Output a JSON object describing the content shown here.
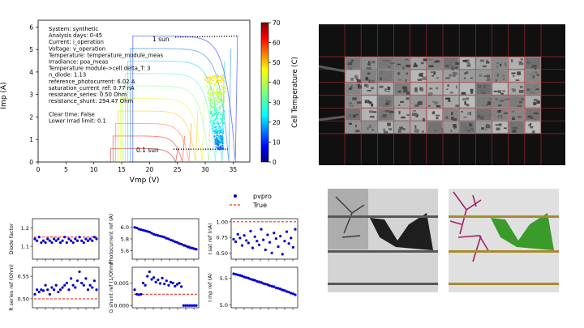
{
  "iv_plot": {
    "ylabel": "Imp (A)",
    "xlabel": "Vmp (V)",
    "xticks": [
      "0",
      "5",
      "10",
      "15",
      "20",
      "25",
      "30",
      "35"
    ],
    "yticks": [
      "0",
      "1",
      "2",
      "3",
      "4",
      "5",
      "6"
    ],
    "info_lines": [
      "System: synthetic",
      "Analysis days: 0-45",
      "Current: i_operation",
      "Voltage: v_operation",
      "Temperature: temperature_module_meas",
      "Irradiance: poa_meas",
      "Temperature module->cell delta_T: 3",
      "n_diode: 1.13",
      "reference_photocurrent: 6.02 A",
      "saturation_current_ref: 0.77 nA",
      "resistance_series: 0.50 Ohm",
      "resistance_shunt: 294.47 Ohm",
      "",
      "Clear time: False",
      "Lower Irrad limit: 0.1"
    ],
    "label_1sun": "1 sun",
    "label_01sun": "0.1 sun",
    "colorbar_label": "Cell Temperature (C)",
    "colorbar_ticks": [
      "0",
      "10",
      "20",
      "30",
      "40",
      "50",
      "60",
      "70"
    ]
  },
  "chart_data": [
    {
      "type": "line",
      "title": "",
      "xlabel": "Vmp (V)",
      "ylabel": "Imp (A)",
      "xlim": [
        0,
        38
      ],
      "ylim": [
        0,
        6.3
      ],
      "series": [
        {
          "name": "1 sun",
          "x": [
            24.6,
            36.0
          ],
          "y": [
            5.55,
            5.6
          ]
        },
        {
          "name": "0.1 sun",
          "x": [
            24.3,
            34.3
          ],
          "y": [
            0.57,
            0.57
          ]
        }
      ],
      "scatter_points": {
        "x_range": [
          30.5,
          35.5
        ],
        "y_range": [
          0.5,
          3.8
        ],
        "color_by": "Cell Temperature (C)",
        "clim": [
          0,
          70
        ]
      },
      "colorbar": {
        "label": "Cell Temperature (C)",
        "range": [
          0,
          70
        ]
      }
    },
    {
      "type": "scatter",
      "ylabel": "Diode factor",
      "yticks": [
        "1.1",
        "1.2"
      ],
      "ylim": [
        1.03,
        1.25
      ],
      "true_value": 1.15,
      "values": [
        1.14,
        1.13,
        1.15,
        1.12,
        1.13,
        1.12,
        1.14,
        1.13,
        1.12,
        1.14,
        1.13,
        1.14,
        1.12,
        1.13,
        1.15,
        1.12,
        1.14,
        1.13,
        1.12,
        1.14,
        1.13,
        1.15,
        1.13,
        1.12,
        1.14,
        1.13,
        1.14,
        1.13,
        1.15,
        1.14
      ]
    },
    {
      "type": "scatter",
      "ylabel": "Photocurrent ref (A)",
      "yticks": [
        "5.6",
        "5.8",
        "6.0"
      ],
      "ylim": [
        5.45,
        6.15
      ],
      "true_line": [
        6.0,
        5.63
      ],
      "values": [
        6.0,
        5.99,
        5.97,
        5.96,
        5.95,
        5.94,
        5.93,
        5.92,
        5.9,
        5.88,
        5.87,
        5.86,
        5.85,
        5.84,
        5.83,
        5.81,
        5.8,
        5.78,
        5.77,
        5.75,
        5.74,
        5.72,
        5.71,
        5.69,
        5.68,
        5.66,
        5.65,
        5.64,
        5.63,
        5.62
      ]
    },
    {
      "type": "scatter",
      "ylabel": "I sat ref (nA)",
      "yticks": [
        "0.50",
        "0.75",
        "1.00"
      ],
      "ylim": [
        0.4,
        1.05
      ],
      "true_value": 1.0,
      "legend": [
        "pvpro",
        "True"
      ],
      "values": [
        0.72,
        0.68,
        0.8,
        0.74,
        0.62,
        0.78,
        0.7,
        0.66,
        0.85,
        0.58,
        0.76,
        0.69,
        0.63,
        0.88,
        0.71,
        0.55,
        0.79,
        0.67,
        0.5,
        0.82,
        0.73,
        0.6,
        0.77,
        0.48,
        0.69,
        0.84,
        0.65,
        0.74,
        0.59,
        0.88
      ]
    },
    {
      "type": "scatter",
      "ylabel": "R series ref (Ohm)",
      "yticks": [
        "0.50",
        "0.55"
      ],
      "ylim": [
        0.48,
        0.57
      ],
      "true_value": 0.5,
      "values": [
        0.51,
        0.52,
        0.515,
        0.52,
        0.518,
        0.53,
        0.52,
        0.51,
        0.525,
        0.52,
        0.53,
        0.515,
        0.52,
        0.525,
        0.53,
        0.535,
        0.52,
        0.545,
        0.53,
        0.525,
        0.54,
        0.56,
        0.535,
        0.53,
        0.545,
        0.52,
        0.53,
        0.525,
        0.54,
        0.52
      ]
    },
    {
      "type": "scatter",
      "ylabel": "G shunt ref (1/Ohm)",
      "yticks": [
        "0.000",
        "0.005"
      ],
      "ylim": [
        -0.0005,
        0.0085
      ],
      "true_value": 0.0025,
      "values": [
        0.0035,
        0.0025,
        0.0024,
        0.0025,
        0.005,
        0.0045,
        0.0065,
        0.0075,
        0.0058,
        0.0062,
        0.0052,
        0.0057,
        0.0049,
        0.0061,
        0.0048,
        0.0055,
        0.0045,
        0.0052,
        0.005,
        0.0043,
        0.0047,
        0.005,
        0.0042,
        0.0,
        0.0,
        0.0,
        0.0,
        0.0,
        0.0,
        0.0
      ]
    },
    {
      "type": "scatter",
      "ylabel": "I mp ref (A)",
      "yticks": [
        "5.0",
        "5.5"
      ],
      "ylim": [
        4.95,
        5.7
      ],
      "true_line": [
        5.58,
        5.18
      ],
      "values": [
        5.58,
        5.57,
        5.56,
        5.55,
        5.54,
        5.52,
        5.51,
        5.5,
        5.48,
        5.47,
        5.46,
        5.44,
        5.43,
        5.42,
        5.4,
        5.39,
        5.38,
        5.36,
        5.35,
        5.34,
        5.32,
        5.31,
        5.3,
        5.28,
        5.27,
        5.25,
        5.24,
        5.22,
        5.21,
        5.19
      ]
    }
  ]
}
